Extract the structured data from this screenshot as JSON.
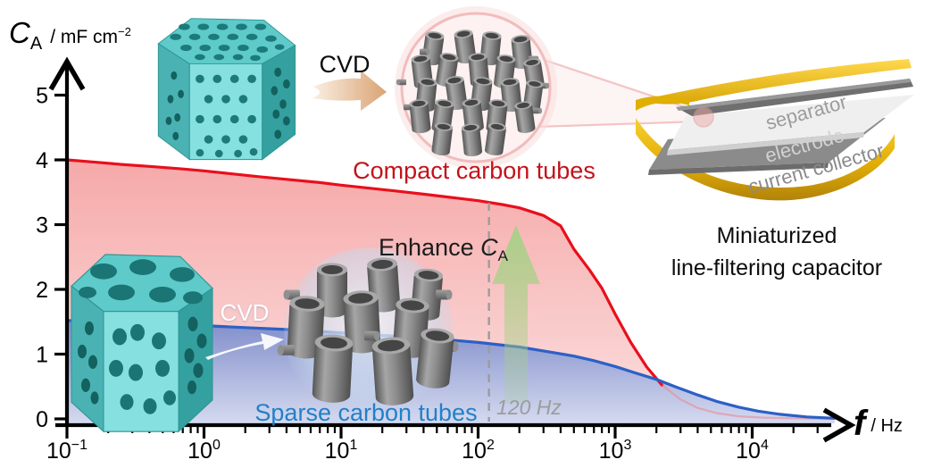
{
  "axes": {
    "y_label": {
      "symbol": "C",
      "sub": "A",
      "unit": "/ mF cm",
      "unit_sup": "−2"
    },
    "x_label": {
      "symbol": "f",
      "unit": "/ Hz"
    }
  },
  "annotations_text": {
    "cvd_top": "CVD",
    "cvd_bottom": "CVD",
    "compact": "Compact carbon tubes",
    "sparse": "Sparse carbon tubes",
    "enhance_prefix": "Enhance ",
    "enhance_symbol": "C",
    "enhance_sub": "A",
    "freq_marker": "120 Hz",
    "device_line1": "Miniaturized",
    "device_line2": "line-filtering capacitor",
    "layer_separator": "separator",
    "layer_electrode": "electrode",
    "layer_current_collector": "current collector"
  },
  "colors": {
    "red_line": "#e90f1c",
    "pink_fill_top": "#f6a9a9",
    "pink_fill_bottom": "#fbdede",
    "blue_line": "#2c60c6",
    "blue_fill_top": "#7b89c8",
    "blue_fill_bottom": "#d4d9ef",
    "compact_text": "#c2131b",
    "sparse_text": "#2380c8",
    "marker_gray": "#9c9c9c",
    "green_arrow": "#a6d186",
    "teal": "#5ecaca",
    "gold": "#e8b400"
  },
  "chart_data": {
    "type": "area",
    "x_scale": "log",
    "title": "",
    "xlabel": "f / Hz",
    "ylabel": "C_A / mF cm^-2",
    "xlim": [
      0.1,
      40000
    ],
    "ylim": [
      0,
      5
    ],
    "grid": false,
    "y_ticks": [
      "0",
      "1",
      "2",
      "3",
      "4",
      "5"
    ],
    "x_ticks": [
      {
        "base": "10",
        "exp": "−1",
        "value": 0.1
      },
      {
        "base": "10",
        "exp": "0",
        "value": 1
      },
      {
        "base": "10",
        "exp": "1",
        "value": 10
      },
      {
        "base": "10",
        "exp": "2",
        "value": 100
      },
      {
        "base": "10",
        "exp": "3",
        "value": 1000
      },
      {
        "base": "10",
        "exp": "4",
        "value": 10000
      }
    ],
    "annotations": {
      "dashed_line_hz": 120,
      "dashed_label": "120 Hz",
      "up_arrow": "Enhance C_A"
    },
    "series": [
      {
        "name": "Compact carbon tubes",
        "color": "#e90f1c",
        "points": [
          [
            0.1,
            4.0
          ],
          [
            0.15,
            3.97
          ],
          [
            0.25,
            3.93
          ],
          [
            0.4,
            3.9
          ],
          [
            0.7,
            3.86
          ],
          [
            1,
            3.83
          ],
          [
            1.5,
            3.79
          ],
          [
            2.5,
            3.74
          ],
          [
            4,
            3.7
          ],
          [
            7,
            3.65
          ],
          [
            10,
            3.61
          ],
          [
            15,
            3.57
          ],
          [
            25,
            3.52
          ],
          [
            40,
            3.47
          ],
          [
            70,
            3.41
          ],
          [
            100,
            3.37
          ],
          [
            150,
            3.31
          ],
          [
            200,
            3.26
          ],
          [
            300,
            3.14
          ],
          [
            400,
            2.98
          ],
          [
            500,
            2.62
          ],
          [
            650,
            2.3
          ],
          [
            800,
            2.02
          ],
          [
            1000,
            1.62
          ],
          [
            1300,
            1.18
          ],
          [
            1700,
            0.8
          ],
          [
            2200,
            0.52
          ],
          [
            3000,
            0.3
          ],
          [
            4000,
            0.17
          ],
          [
            5500,
            0.09
          ],
          [
            8000,
            0.04
          ],
          [
            12000,
            0.02
          ],
          [
            20000,
            0.01
          ],
          [
            40000,
            0.0
          ]
        ]
      },
      {
        "name": "Sparse carbon tubes",
        "color": "#2c60c6",
        "points": [
          [
            0.1,
            1.52
          ],
          [
            0.2,
            1.5
          ],
          [
            0.4,
            1.48
          ],
          [
            0.7,
            1.46
          ],
          [
            1,
            1.44
          ],
          [
            2,
            1.41
          ],
          [
            4,
            1.38
          ],
          [
            7,
            1.35
          ],
          [
            10,
            1.33
          ],
          [
            20,
            1.29
          ],
          [
            40,
            1.25
          ],
          [
            70,
            1.21
          ],
          [
            100,
            1.18
          ],
          [
            150,
            1.14
          ],
          [
            200,
            1.11
          ],
          [
            300,
            1.05
          ],
          [
            500,
            0.97
          ],
          [
            700,
            0.9
          ],
          [
            1000,
            0.81
          ],
          [
            1400,
            0.71
          ],
          [
            2000,
            0.61
          ],
          [
            2800,
            0.49
          ],
          [
            4000,
            0.37
          ],
          [
            5500,
            0.27
          ],
          [
            8000,
            0.18
          ],
          [
            11000,
            0.12
          ],
          [
            16000,
            0.07
          ],
          [
            25000,
            0.03
          ],
          [
            40000,
            0.01
          ]
        ]
      }
    ]
  }
}
